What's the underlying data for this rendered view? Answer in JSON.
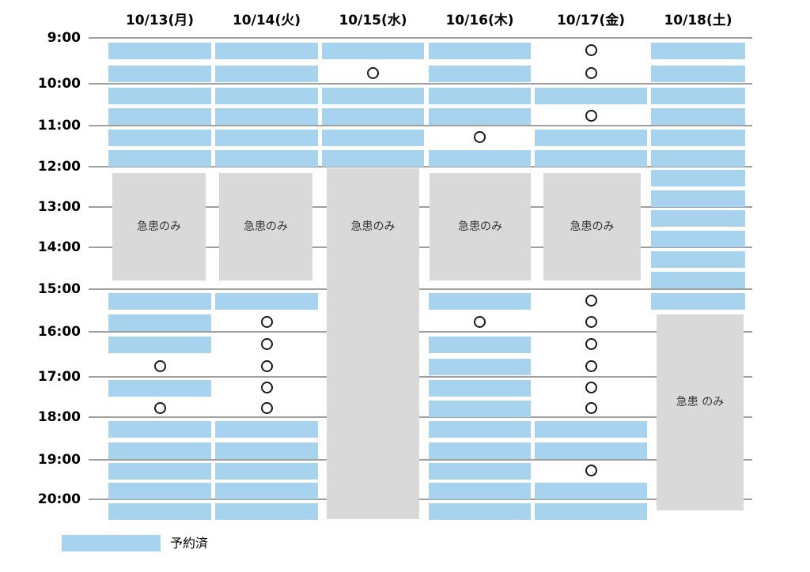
{
  "colors": {
    "booked": "#A8D3EE",
    "emergency": "#D9D9D9",
    "gridline": "#9F9F9F",
    "open_marker": "#1A1A1A"
  },
  "legend": {
    "booked_label": "予約済"
  },
  "schedule": {
    "time_labels": [
      "9:00",
      "10:00",
      "11:00",
      "12:00",
      "13:00",
      "14:00",
      "15:00",
      "16:00",
      "17:00",
      "18:00",
      "19:00",
      "20:00"
    ],
    "slot_times": [
      "9:00",
      "9:30",
      "10:00",
      "10:30",
      "11:00",
      "11:30",
      "12:00",
      "12:30",
      "13:00",
      "13:30",
      "14:00",
      "14:30",
      "15:00",
      "15:30",
      "16:00",
      "16:30",
      "17:00",
      "17:30",
      "18:00",
      "18:30",
      "19:00",
      "19:30",
      "20:00"
    ],
    "days": [
      {
        "date": "10/13(月)",
        "emergency_label": "急患のみ",
        "slots": [
          "booked",
          "booked",
          "booked",
          "booked",
          "booked",
          "booked",
          "emergency",
          "emergency",
          "emergency",
          "emergency",
          "emergency",
          "emergency",
          "booked",
          "booked",
          "booked",
          "open",
          "booked",
          "open",
          "booked",
          "booked",
          "booked",
          "booked",
          "booked"
        ]
      },
      {
        "date": "10/14(火)",
        "emergency_label": "急患のみ",
        "slots": [
          "booked",
          "booked",
          "booked",
          "booked",
          "booked",
          "booked",
          "emergency",
          "emergency",
          "emergency",
          "emergency",
          "emergency",
          "emergency",
          "booked",
          "open",
          "open",
          "open",
          "open",
          "open",
          "booked",
          "booked",
          "booked",
          "booked",
          "booked"
        ]
      },
      {
        "date": "10/15(水)",
        "emergency_label": "急患のみ",
        "slots": [
          "booked",
          "open",
          "booked",
          "booked",
          "booked",
          "booked",
          "emergency",
          "emergency",
          "emergency",
          "emergency",
          "emergency",
          "emergency",
          "emergency",
          "emergency",
          "emergency",
          "emergency",
          "emergency",
          "emergency",
          "emergency",
          "emergency",
          "emergency",
          "emergency",
          "emergency"
        ]
      },
      {
        "date": "10/16(木)",
        "emergency_label": "急患のみ",
        "slots": [
          "booked",
          "booked",
          "booked",
          "booked",
          "open",
          "booked",
          "emergency",
          "emergency",
          "emergency",
          "emergency",
          "emergency",
          "emergency",
          "booked",
          "open",
          "booked",
          "booked",
          "booked",
          "booked",
          "booked",
          "booked",
          "booked",
          "booked",
          "booked"
        ]
      },
      {
        "date": "10/17(金)",
        "emergency_label": "急患のみ",
        "slots": [
          "open",
          "open",
          "booked",
          "open",
          "booked",
          "booked",
          "emergency",
          "emergency",
          "emergency",
          "emergency",
          "emergency",
          "emergency",
          "open",
          "open",
          "open",
          "open",
          "open",
          "open",
          "booked",
          "booked",
          "open",
          "booked",
          "booked"
        ]
      },
      {
        "date": "10/18(土)",
        "emergency_label": "急患 のみ",
        "slots": [
          "booked",
          "booked",
          "booked",
          "booked",
          "booked",
          "booked",
          "booked",
          "booked",
          "booked",
          "booked",
          "booked",
          "booked",
          "booked",
          "emergency",
          "emergency",
          "emergency",
          "emergency",
          "emergency",
          "emergency",
          "emergency",
          "emergency",
          "emergency",
          "emergency"
        ]
      }
    ]
  }
}
